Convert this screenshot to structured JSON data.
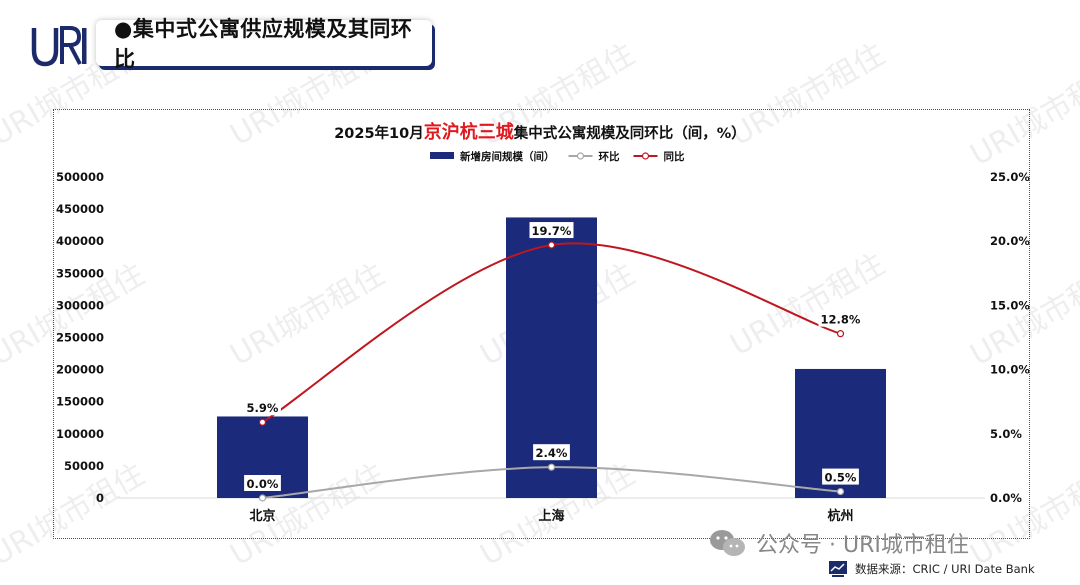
{
  "header": {
    "logo_text": "URI",
    "section_title": "●集中式公寓供应规模及其同环比"
  },
  "chart_title": {
    "prefix": "2025年10月",
    "highlight": "京沪杭三城",
    "suffix": "集中式公寓规模及同环比（间，%）"
  },
  "chart_data": {
    "type": "bar",
    "categories": [
      "北京",
      "上海",
      "杭州"
    ],
    "series": [
      {
        "name": "新增房间规模（间）",
        "kind": "bar",
        "axis": "left",
        "values": [
          127000,
          437000,
          201000
        ],
        "color": "#1b2a7a"
      },
      {
        "name": "环比",
        "kind": "line",
        "axis": "right",
        "values": [
          0.0,
          2.4,
          0.5
        ],
        "labels": [
          "0.0%",
          "2.4%",
          "0.5%"
        ],
        "color": "#a8a8a8"
      },
      {
        "name": "同比",
        "kind": "line",
        "axis": "right",
        "values": [
          5.9,
          19.7,
          12.8
        ],
        "labels": [
          "5.9%",
          "19.7%",
          "12.8%"
        ],
        "color": "#c0161f"
      }
    ],
    "y_left": {
      "min": 0,
      "max": 500000,
      "ticks": [
        "0",
        "50000",
        "100000",
        "150000",
        "200000",
        "250000",
        "300000",
        "350000",
        "400000",
        "450000",
        "500000"
      ]
    },
    "y_right": {
      "min": 0,
      "max": 25,
      "ticks": [
        "0.0%",
        "5.0%",
        "10.0%",
        "15.0%",
        "20.0%",
        "25.0%"
      ]
    },
    "legend_position": "top-center",
    "grid": false
  },
  "watermark": "URI城市租住",
  "footer": {
    "wechat_text": "公众号 · URI城市租住",
    "source_text": "数据来源：CRIC / URI Date Bank"
  }
}
